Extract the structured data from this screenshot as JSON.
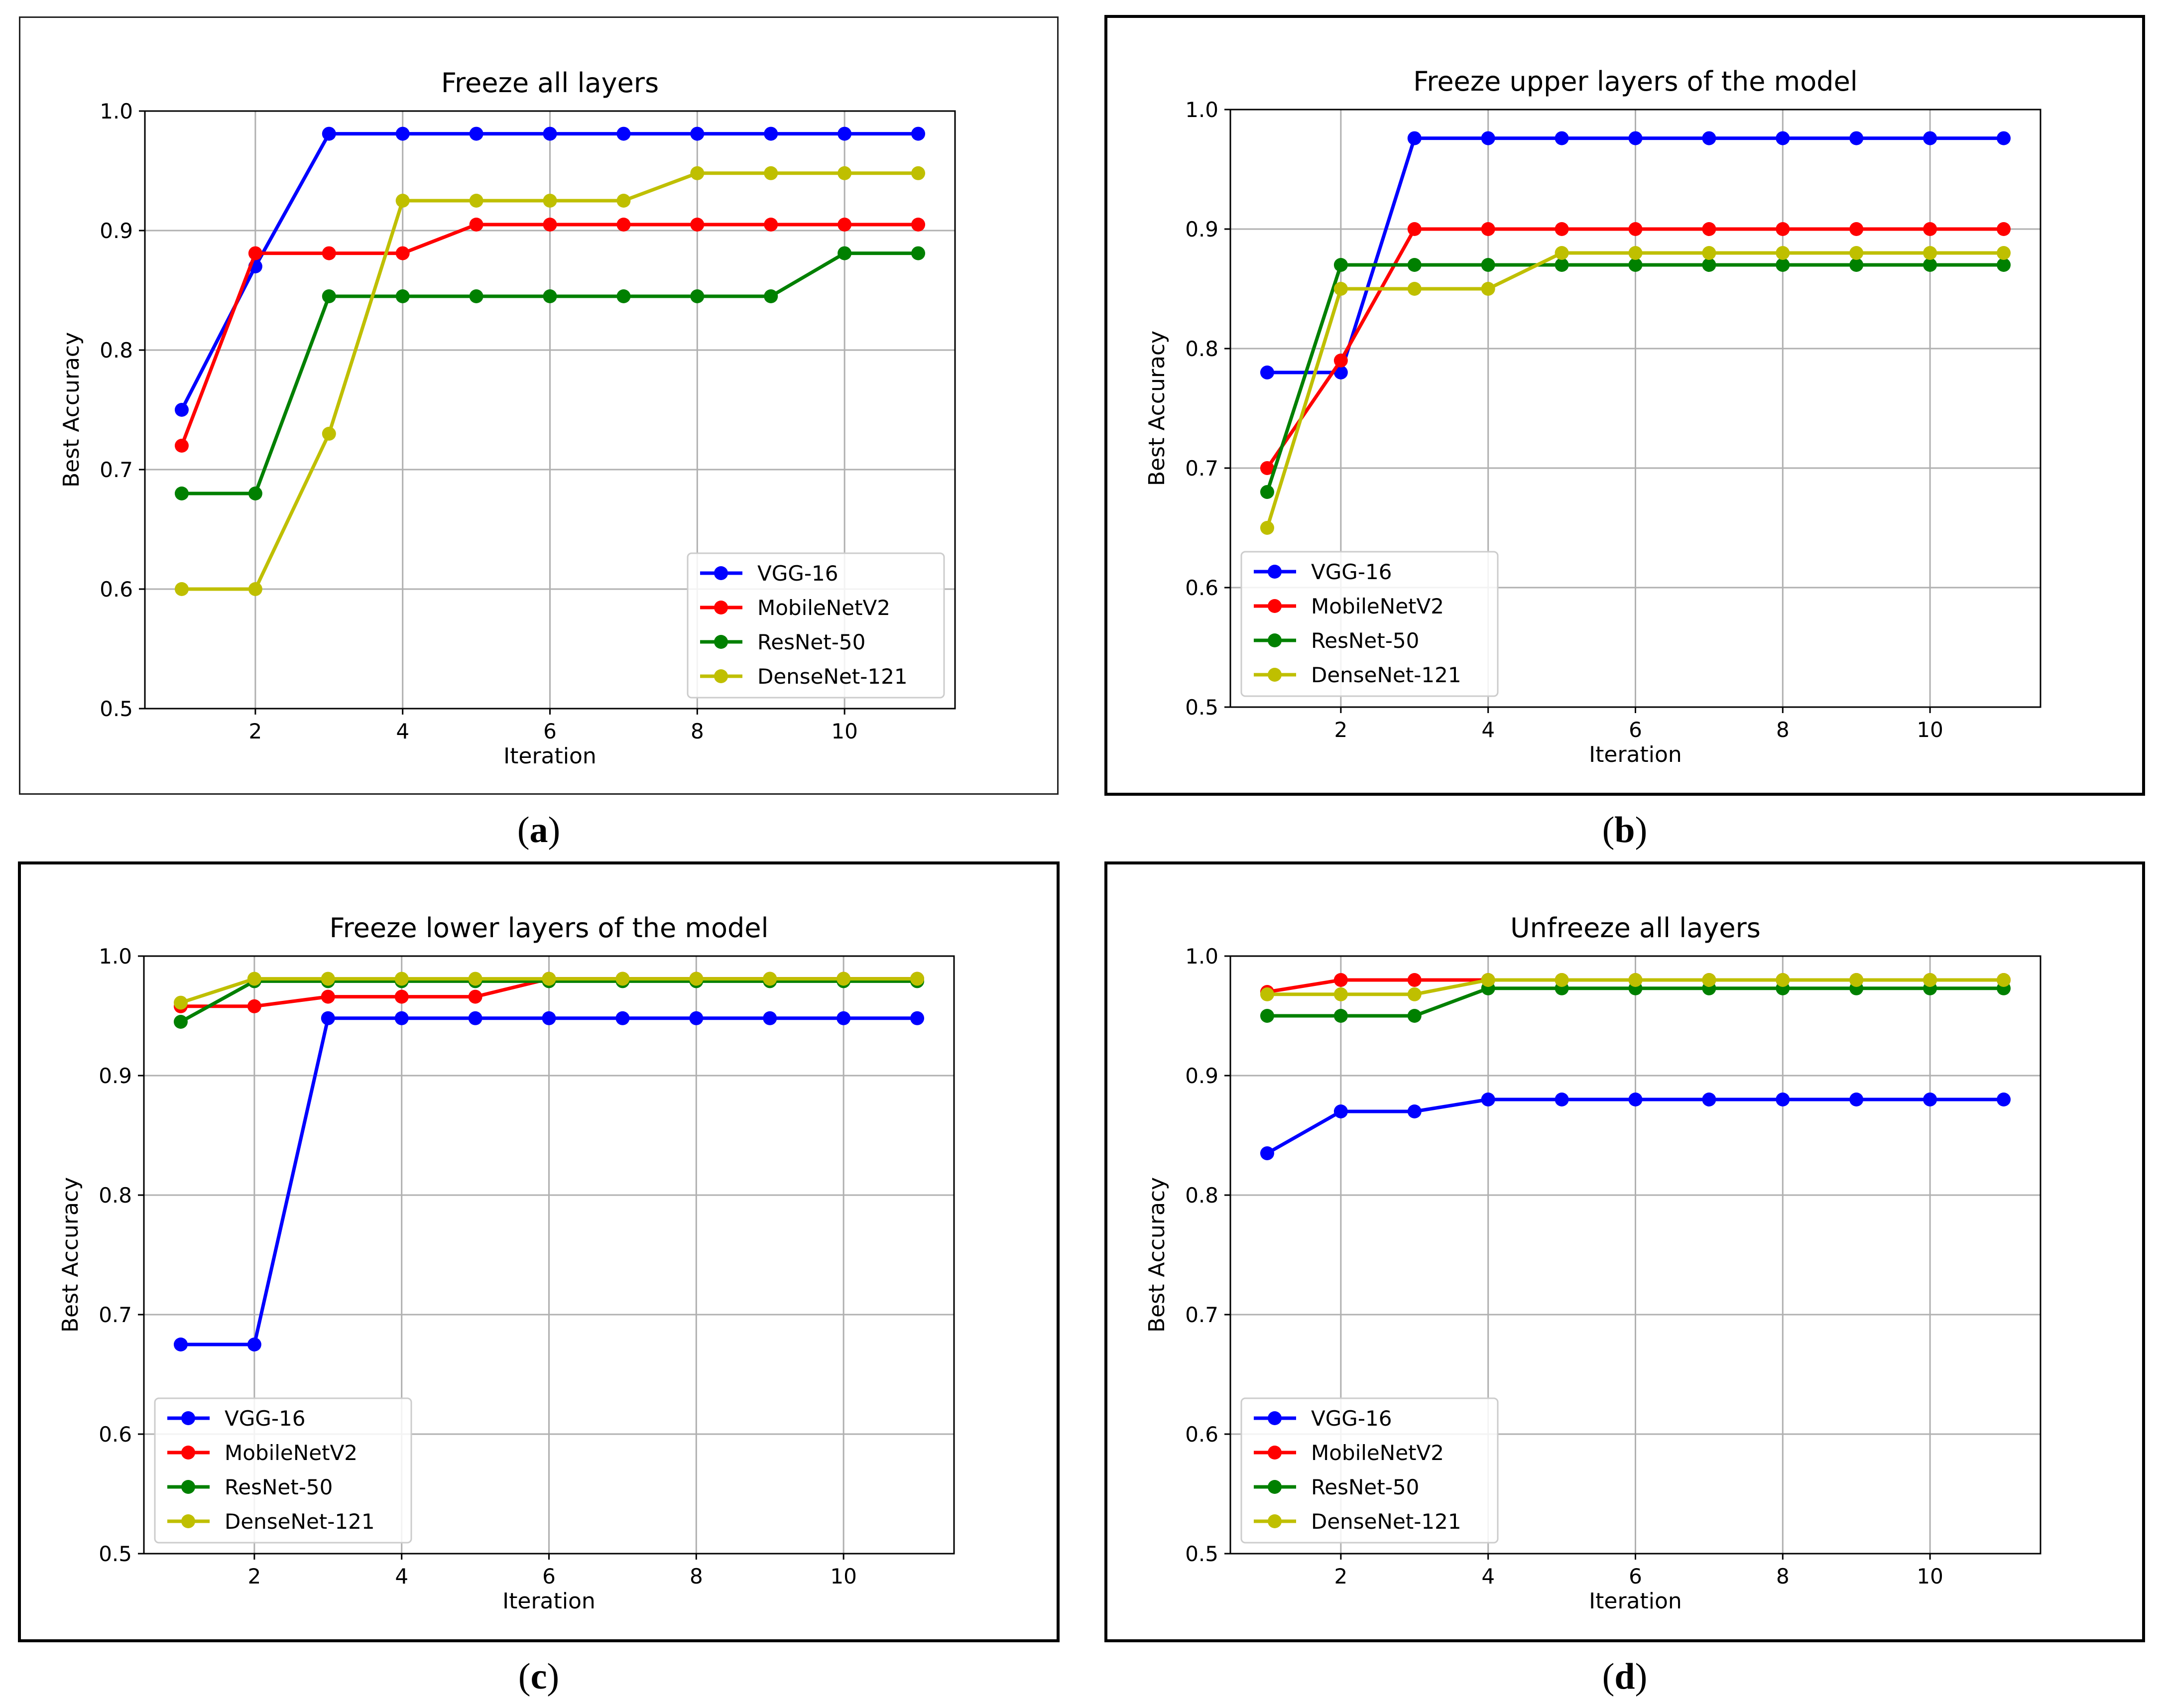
{
  "figure": {
    "colors": {
      "VGG-16": "#0000ff",
      "MobileNetV2": "#ff0000",
      "ResNet-50": "#008000",
      "DenseNet-121": "#bfbf00"
    }
  },
  "chart_data": [
    {
      "id": "a",
      "caption_letter": "a",
      "type": "line",
      "title": "Freeze all layers",
      "xlabel": "Iteration",
      "ylabel": "Best Accuracy",
      "xlim": [
        0.5,
        11.5
      ],
      "ylim": [
        0.5,
        1.0
      ],
      "xticks": [
        2,
        4,
        6,
        8,
        10
      ],
      "yticks": [
        0.5,
        0.6,
        0.7,
        0.8,
        0.9,
        1.0
      ],
      "ytick_labels": [
        "0.5",
        "0.6",
        "0.7",
        "0.8",
        "0.9",
        "1.0"
      ],
      "grid": true,
      "legend_position": "lower-right",
      "x": [
        1,
        2,
        3,
        4,
        5,
        6,
        7,
        8,
        9,
        10,
        11
      ],
      "series": [
        {
          "name": "VGG-16",
          "values": [
            0.75,
            0.87,
            0.981,
            0.981,
            0.981,
            0.981,
            0.981,
            0.981,
            0.981,
            0.981,
            0.981
          ]
        },
        {
          "name": "MobileNetV2",
          "values": [
            0.72,
            0.881,
            0.881,
            0.881,
            0.905,
            0.905,
            0.905,
            0.905,
            0.905,
            0.905,
            0.905
          ]
        },
        {
          "name": "ResNet-50",
          "values": [
            0.68,
            0.68,
            0.845,
            0.845,
            0.845,
            0.845,
            0.845,
            0.845,
            0.845,
            0.881,
            0.881
          ]
        },
        {
          "name": "DenseNet-121",
          "values": [
            0.6,
            0.6,
            0.73,
            0.925,
            0.925,
            0.925,
            0.925,
            0.948,
            0.948,
            0.948,
            0.948
          ]
        }
      ]
    },
    {
      "id": "b",
      "caption_letter": "b",
      "type": "line",
      "title": "Freeze upper layers of the model",
      "xlabel": "Iteration",
      "ylabel": "Best Accuracy",
      "xlim": [
        0.5,
        11.5
      ],
      "ylim": [
        0.5,
        1.0
      ],
      "xticks": [
        2,
        4,
        6,
        8,
        10
      ],
      "yticks": [
        0.5,
        0.6,
        0.7,
        0.8,
        0.9,
        1.0
      ],
      "ytick_labels": [
        "0.5",
        "0.6",
        "0.7",
        "0.8",
        "0.9",
        "1.0"
      ],
      "grid": true,
      "legend_position": "lower-left",
      "x": [
        1,
        2,
        3,
        4,
        5,
        6,
        7,
        8,
        9,
        10,
        11
      ],
      "series": [
        {
          "name": "VGG-16",
          "values": [
            0.78,
            0.78,
            0.976,
            0.976,
            0.976,
            0.976,
            0.976,
            0.976,
            0.976,
            0.976,
            0.976
          ]
        },
        {
          "name": "MobileNetV2",
          "values": [
            0.7,
            0.79,
            0.9,
            0.9,
            0.9,
            0.9,
            0.9,
            0.9,
            0.9,
            0.9,
            0.9
          ]
        },
        {
          "name": "ResNet-50",
          "values": [
            0.68,
            0.87,
            0.87,
            0.87,
            0.87,
            0.87,
            0.87,
            0.87,
            0.87,
            0.87,
            0.87
          ]
        },
        {
          "name": "DenseNet-121",
          "values": [
            0.65,
            0.85,
            0.85,
            0.85,
            0.88,
            0.88,
            0.88,
            0.88,
            0.88,
            0.88,
            0.88
          ]
        }
      ]
    },
    {
      "id": "c",
      "caption_letter": "c",
      "type": "line",
      "title": "Freeze lower layers of the model",
      "xlabel": "Iteration",
      "ylabel": "Best Accuracy",
      "xlim": [
        0.5,
        11.5
      ],
      "ylim": [
        0.5,
        1.0
      ],
      "xticks": [
        2,
        4,
        6,
        8,
        10
      ],
      "yticks": [
        0.5,
        0.6,
        0.7,
        0.8,
        0.9,
        1.0
      ],
      "ytick_labels": [
        "0.5",
        "0.6",
        "0.7",
        "0.8",
        "0.9",
        "1.0"
      ],
      "grid": true,
      "legend_position": "lower-left",
      "x": [
        1,
        2,
        3,
        4,
        5,
        6,
        7,
        8,
        9,
        10,
        11
      ],
      "series": [
        {
          "name": "VGG-16",
          "values": [
            0.675,
            0.675,
            0.948,
            0.948,
            0.948,
            0.948,
            0.948,
            0.948,
            0.948,
            0.948,
            0.948
          ]
        },
        {
          "name": "MobileNetV2",
          "values": [
            0.958,
            0.958,
            0.966,
            0.966,
            0.966,
            0.981,
            0.981,
            0.981,
            0.981,
            0.981,
            0.981
          ]
        },
        {
          "name": "ResNet-50",
          "values": [
            0.945,
            0.979,
            0.979,
            0.979,
            0.979,
            0.979,
            0.979,
            0.979,
            0.979,
            0.979,
            0.979
          ]
        },
        {
          "name": "DenseNet-121",
          "values": [
            0.961,
            0.981,
            0.981,
            0.981,
            0.981,
            0.981,
            0.981,
            0.981,
            0.981,
            0.981,
            0.981
          ]
        }
      ]
    },
    {
      "id": "d",
      "caption_letter": "d",
      "type": "line",
      "title": "Unfreeze all layers",
      "xlabel": "Iteration",
      "ylabel": "Best Accuracy",
      "xlim": [
        0.5,
        11.5
      ],
      "ylim": [
        0.5,
        1.0
      ],
      "xticks": [
        2,
        4,
        6,
        8,
        10
      ],
      "yticks": [
        0.5,
        0.6,
        0.7,
        0.8,
        0.9,
        1.0
      ],
      "ytick_labels": [
        "0.5",
        "0.6",
        "0.7",
        "0.8",
        "0.9",
        "1.0"
      ],
      "grid": true,
      "legend_position": "lower-left",
      "x": [
        1,
        2,
        3,
        4,
        5,
        6,
        7,
        8,
        9,
        10,
        11
      ],
      "series": [
        {
          "name": "VGG-16",
          "values": [
            0.835,
            0.87,
            0.87,
            0.88,
            0.88,
            0.88,
            0.88,
            0.88,
            0.88,
            0.88,
            0.88
          ]
        },
        {
          "name": "MobileNetV2",
          "values": [
            0.97,
            0.98,
            0.98,
            0.98,
            0.98,
            0.98,
            0.98,
            0.98,
            0.98,
            0.98,
            0.98
          ]
        },
        {
          "name": "ResNet-50",
          "values": [
            0.95,
            0.95,
            0.95,
            0.973,
            0.973,
            0.973,
            0.973,
            0.973,
            0.973,
            0.973,
            0.973
          ]
        },
        {
          "name": "DenseNet-121",
          "values": [
            0.968,
            0.968,
            0.968,
            0.98,
            0.98,
            0.98,
            0.98,
            0.98,
            0.98,
            0.98,
            0.98
          ]
        }
      ]
    }
  ]
}
